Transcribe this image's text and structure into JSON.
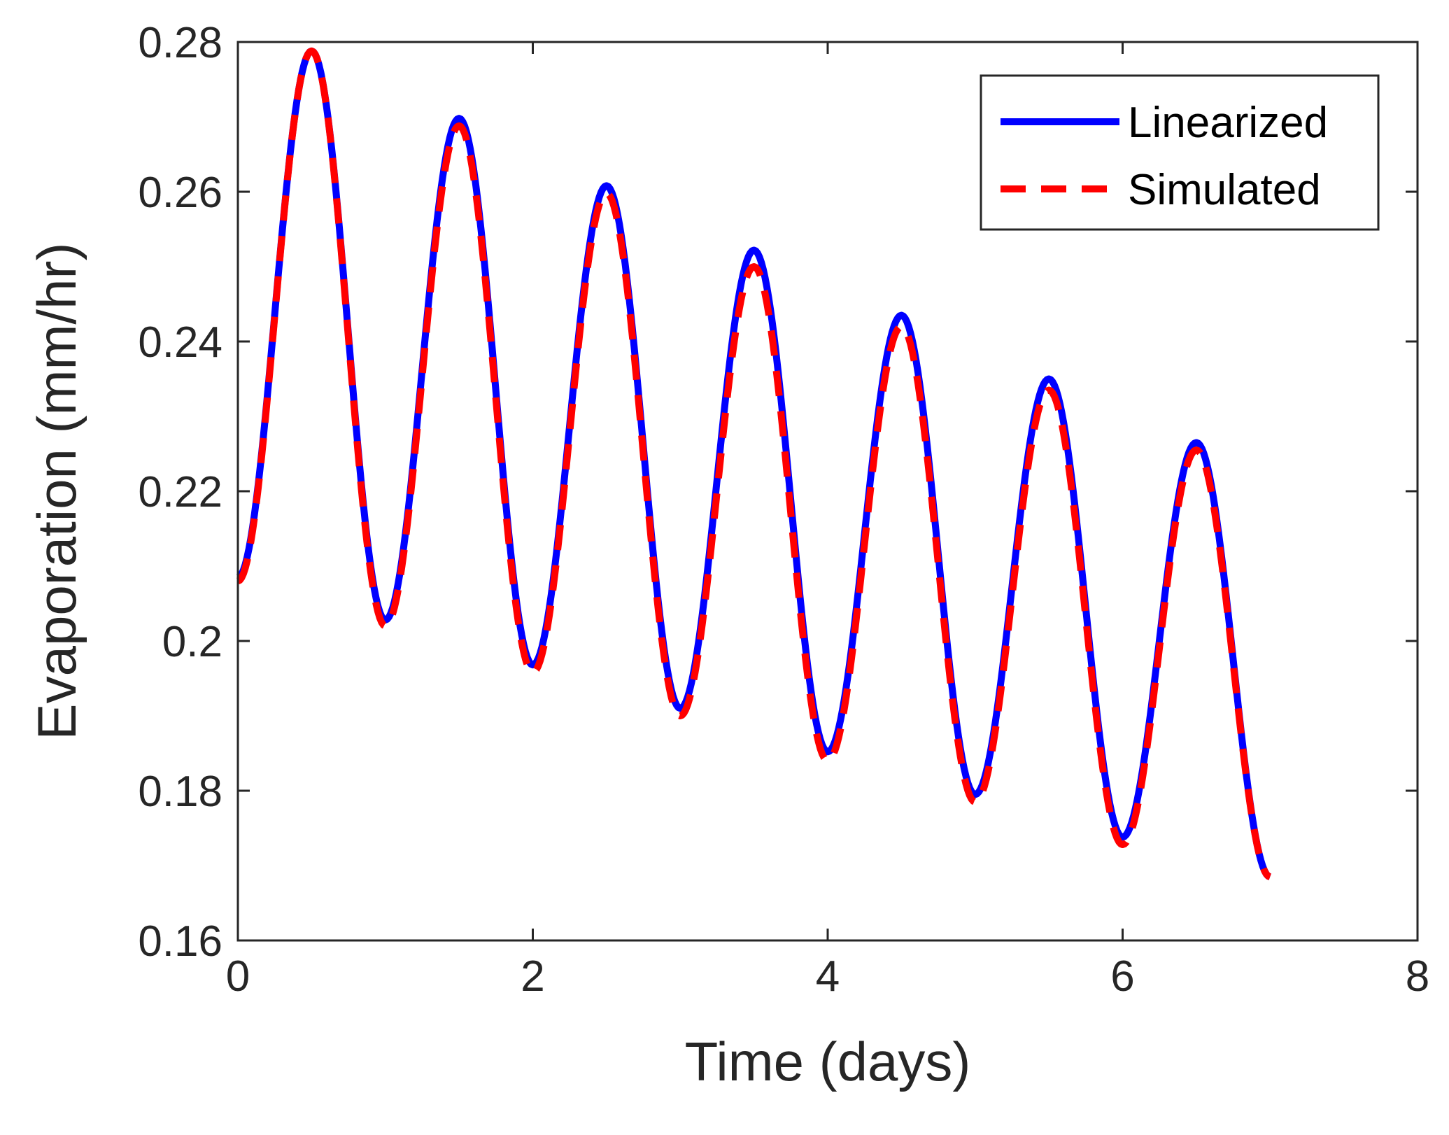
{
  "chart_data": {
    "type": "line",
    "xlabel": "Time (days)",
    "ylabel": "Evaporation (mm/hr)",
    "xlim": [
      0,
      8
    ],
    "ylim": [
      0.16,
      0.28
    ],
    "xticks": [
      0,
      2,
      4,
      6,
      8
    ],
    "xtick_labels": [
      "0",
      "2",
      "4",
      "6",
      "8"
    ],
    "yticks": [
      0.16,
      0.18,
      0.2,
      0.22,
      0.24,
      0.26,
      0.28
    ],
    "ytick_labels": [
      "0.16",
      "0.18",
      "0.2",
      "0.22",
      "0.24",
      "0.26",
      "0.28"
    ],
    "grid": false,
    "legend_position": "top-right",
    "series": [
      {
        "name": "Linearized",
        "color": "#0000ff",
        "style": "solid",
        "x": [
          0,
          0.5,
          1,
          1.5,
          2,
          2.5,
          3,
          3.5,
          4,
          4.5,
          5,
          5.5,
          6,
          6.5,
          7
        ],
        "y": [
          0.2085,
          0.2788,
          0.2028,
          0.2698,
          0.1968,
          0.2608,
          0.191,
          0.2522,
          0.1852,
          0.2435,
          0.1795,
          0.235,
          0.1738,
          0.2265,
          0.1685
        ]
      },
      {
        "name": "Simulated",
        "color": "#ff0000",
        "style": "dashed",
        "x": [
          0,
          0.5,
          1,
          1.5,
          2,
          2.5,
          3,
          3.5,
          4,
          4.5,
          5,
          5.5,
          6,
          6.5,
          7
        ],
        "y": [
          0.208,
          0.2788,
          0.202,
          0.2688,
          0.1958,
          0.2598,
          0.19,
          0.25,
          0.184,
          0.242,
          0.1785,
          0.2335,
          0.1728,
          0.2255,
          0.1685
        ]
      }
    ]
  }
}
